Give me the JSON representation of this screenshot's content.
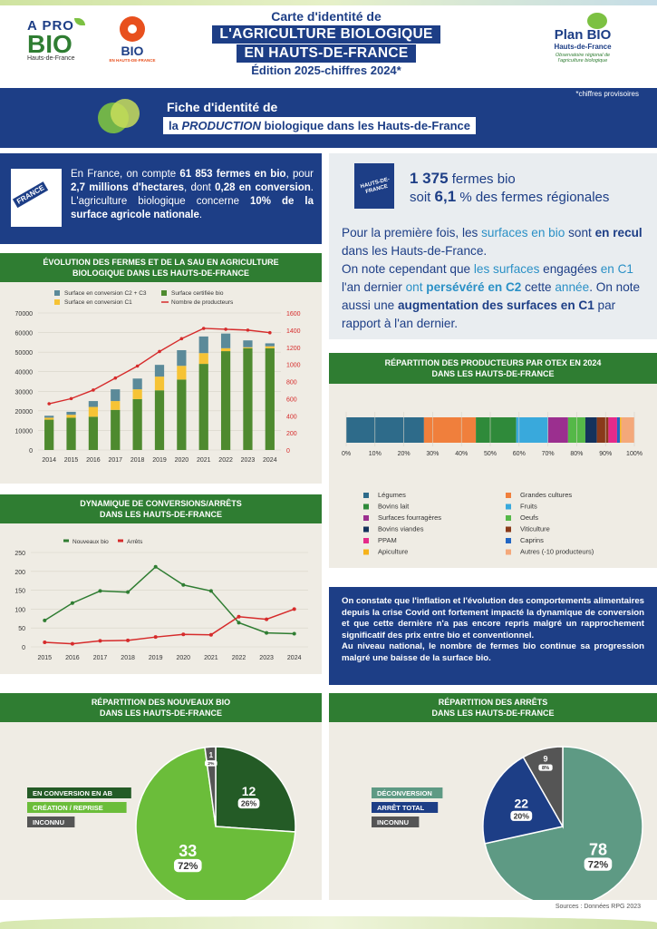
{
  "header": {
    "line1": "Carte d'identité de",
    "line2": "L'AGRICULTURE BIOLOGIQUE",
    "line3": "EN HAUTS-DE-FRANCE",
    "line4": "Édition 2025-chiffres 2024*",
    "logo_apro_a": "A PRO",
    "logo_apro_bio": "BIO",
    "logo_apro_sub": "Hauts-de-France",
    "logo_bio": "BIO",
    "logo_bio_sub": "EN HAUTS-DE-FRANCE",
    "plan_title": "Plan BIO",
    "plan_sub": "Hauts-de-France",
    "plan_desc1": "Observatoire régional de",
    "plan_desc2": "l'agriculture biologique",
    "note": "*chiffres provisoires"
  },
  "banner": {
    "line1": "Fiche d'identité de",
    "line2_prefix": "la ",
    "line2_em": "PRODUCTION",
    "line2_suffix": " biologique dans les Hauts-de-France"
  },
  "france_box": {
    "badge": "FRANCE",
    "t1": "En France, on compte ",
    "b1": "61 853 fermes en bio",
    "t2": ", pour ",
    "b2": "2,7 millions d'hectares",
    "t3": ", dont ",
    "b3": "0,28 en conversion",
    "t4": ". L'agriculture biologique concerne ",
    "b4": "10% de la surface agricole nationale",
    "t5": "."
  },
  "region_box": {
    "badge": "HAUTS-DE-FRANCE",
    "farms_num": "1 375",
    "farms_txt": " fermes bio",
    "soit": "soit ",
    "pct_num": "6,1",
    "pct_txt": " % des fermes régionales",
    "p1": "Pour la première fois, les ",
    "p1c": "surfaces en bio",
    "p1b": " sont ",
    "p1d": "en recul",
    "p1e": " dans les Hauts-de-France.",
    "p2": "On note cependant que ",
    "p2c": "les surfaces",
    "p2b": " engagées ",
    "p2d": "en C1",
    "p2e": " l'an dernier ",
    "p2f": "ont",
    "p2g": " persévéré en C2",
    "p2h": " cette ",
    "p2i": "année",
    "p2j": ". On note aussi une ",
    "p2k": "augmentation des surfaces en C1",
    "p2l": " par rapport à l'an dernier."
  },
  "sections": {
    "evolution_title1": "ÉVOLUTION DES FERMES ET DE LA SAU EN AGRICULTURE",
    "evolution_title2": "BIOLOGIQUE DANS LES HAUTS-DE-FRANCE",
    "otex_title1": "RÉPARTITION DES PRODUCTEURS PAR OTEX EN 2024",
    "otex_title2": "DANS LES HAUTS-DE-FRANCE",
    "dyn_title1": "DYNAMIQUE DE CONVERSIONS/ARRÊTS",
    "dyn_title2": "DANS LES HAUTS-DE-FRANCE",
    "nouveaux_title1": "RÉPARTITION DES NOUVEAUX BIO",
    "nouveaux_title2": "DANS LES HAUTS-DE-FRANCE",
    "arrets_title1": "RÉPARTITION DES ARRÊTS",
    "arrets_title2": "DANS LES HAUTS-DE-FRANCE"
  },
  "inflation_text1": "On constate que l'inflation et l'évolution des comportements alimentaires depuis la crise Covid ont fortement impacté la dynamique de conversion et que cette dernière n'a pas encore repris malgré un rapprochement significatif des prix entre bio et conventionnel.",
  "inflation_text2": "Au niveau national, le nombre de fermes bio continue sa progression malgré une baisse de la surface bio.",
  "sources": "Sources : Données RPG 2023",
  "colors": {
    "navy": "#1d3e86",
    "green": "#2f7d32",
    "red": "#d62b2b",
    "light_green": "#7cc142"
  },
  "chart_data": [
    {
      "type": "bar",
      "id": "evolution",
      "categories": [
        "2014",
        "2015",
        "2016",
        "2017",
        "2018",
        "2019",
        "2020",
        "2021",
        "2022",
        "2023",
        "2024"
      ],
      "series": [
        {
          "name": "Surface certifiée bio",
          "color": "#4e8a2f",
          "values": [
            15500,
            16500,
            17000,
            20500,
            26000,
            30500,
            36000,
            44000,
            50500,
            52000,
            52000
          ]
        },
        {
          "name": "Surface en conversion C1",
          "color": "#f6c335",
          "values": [
            1000,
            1500,
            5000,
            4500,
            5000,
            7000,
            7000,
            5500,
            1500,
            500,
            1000
          ]
        },
        {
          "name": "Surface en conversion C2 + C3",
          "color": "#5b8a99",
          "values": [
            1000,
            1500,
            3000,
            6000,
            5500,
            6000,
            8000,
            8500,
            7500,
            3500,
            1500
          ]
        },
        {
          "name": "Nombre de producteurs",
          "type": "line",
          "color": "#d62b2b",
          "axis": "right",
          "values": [
            540,
            600,
            700,
            840,
            980,
            1150,
            1300,
            1420,
            1410,
            1400,
            1370
          ]
        }
      ],
      "ylim": [
        0,
        70000
      ],
      "yticks": [
        "70000",
        "60000",
        "50000",
        "40000",
        "30000",
        "20000",
        "10000",
        "0"
      ],
      "y2lim": [
        0,
        1600
      ],
      "y2ticks": [
        "1600",
        "1400",
        "1200",
        "1000",
        "800",
        "600",
        "400",
        "200",
        "0"
      ],
      "legend": "top"
    },
    {
      "type": "line",
      "id": "dynamique",
      "x": [
        "2015",
        "2016",
        "2017",
        "2018",
        "2019",
        "2020",
        "2021",
        "2022",
        "2023",
        "2024"
      ],
      "series": [
        {
          "name": "Nouveaux bio",
          "color": "#2f7d32",
          "values": [
            70,
            116,
            148,
            145,
            212,
            164,
            148,
            64,
            37,
            35
          ]
        },
        {
          "name": "Arrêts",
          "color": "#d62b2b",
          "values": [
            12,
            8,
            16,
            17,
            26,
            33,
            32,
            80,
            73,
            100
          ]
        }
      ],
      "ylim": [
        0,
        250
      ],
      "yticks": [
        "250",
        "200",
        "150",
        "100",
        "50",
        "0"
      ],
      "legend": "top"
    },
    {
      "type": "bar",
      "id": "otex",
      "orientation": "horizontal-stacked",
      "xticks": [
        "0%",
        "10%",
        "20%",
        "30%",
        "40%",
        "50%",
        "60%",
        "70%",
        "80%",
        "90%",
        "100%"
      ],
      "series": [
        {
          "name": "Légumes",
          "color": "#2e6b8a",
          "value": 27
        },
        {
          "name": "Grandes cultures",
          "color": "#f07f3c",
          "value": 18
        },
        {
          "name": "Bovins lait",
          "color": "#2f8a3a",
          "value": 14
        },
        {
          "name": "Fruits",
          "color": "#39a9dc",
          "value": 11
        },
        {
          "name": "Surfaces fourragères",
          "color": "#9b2f8f",
          "value": 7
        },
        {
          "name": "Oeufs",
          "color": "#55b848",
          "value": 6
        },
        {
          "name": "Bovins viandes",
          "color": "#14325c",
          "value": 4
        },
        {
          "name": "Viticulture",
          "color": "#8a3a1a",
          "value": 4
        },
        {
          "name": "PPAM",
          "color": "#e52a8a",
          "value": 3
        },
        {
          "name": "Caprins",
          "color": "#2266c4",
          "value": 1
        },
        {
          "name": "Apiculture",
          "color": "#f6b21a",
          "value": 0.5
        },
        {
          "name": "Autres (-10 producteurs)",
          "color": "#f4a87a",
          "value": 4.5
        }
      ]
    },
    {
      "type": "pie",
      "id": "nouveaux",
      "slices": [
        {
          "name": "EN CONVERSION EN AB",
          "value": 12,
          "pct": "26%",
          "color": "#245b26"
        },
        {
          "name": "CRÉATION / REPRISE",
          "value": 33,
          "pct": "72%",
          "color": "#6bbd3a"
        },
        {
          "name": "INCONNU",
          "value": 1,
          "pct": "2%",
          "color": "#555555"
        }
      ]
    },
    {
      "type": "pie",
      "id": "arrets",
      "slices": [
        {
          "name": "DÉCONVERSION",
          "value": 78,
          "pct": "72%",
          "color": "#5e9a84"
        },
        {
          "name": "ARRÊT TOTAL",
          "value": 22,
          "pct": "20%",
          "color": "#1d3e86"
        },
        {
          "name": "INCONNU",
          "value": 9,
          "pct": "8%",
          "color": "#555555"
        }
      ]
    }
  ]
}
